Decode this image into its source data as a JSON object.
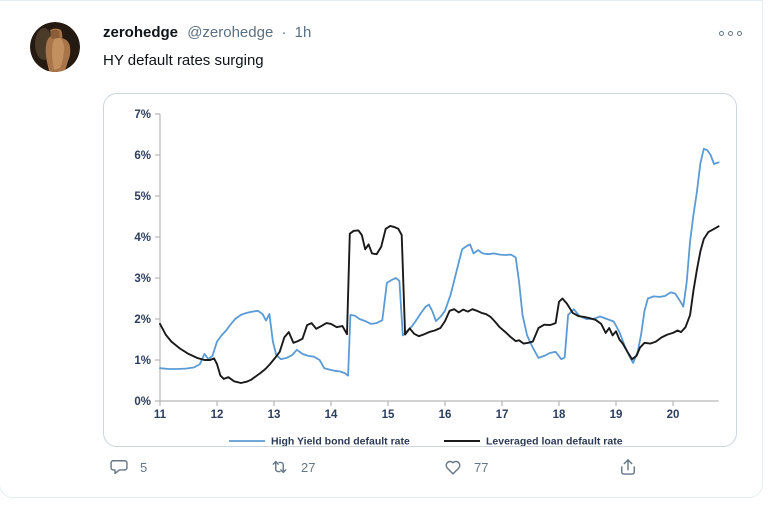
{
  "tweet": {
    "author_name": "zerohedge",
    "author_handle": "@zerohedge",
    "separator": "·",
    "timestamp": "1h",
    "text": "HY default rates surging",
    "engagement": {
      "replies": "5",
      "retweets": "27",
      "likes": "77"
    }
  },
  "icons": {
    "more": "more-ellipsis-icon",
    "reply": "reply-bubble-icon",
    "retweet": "retweet-icon",
    "like": "heart-icon",
    "share": "share-upload-icon"
  },
  "colors": {
    "text_primary": "#0f1419",
    "text_secondary": "#5b7083",
    "icon_gray": "#657786",
    "card_border": "#ccd6dd",
    "axis_line": "#b7b7b7",
    "axis_label": "#2c3e5d",
    "hy_line": "#5B9BD5",
    "loan_line": "#1a1a1a"
  },
  "chart_data": {
    "type": "line",
    "title": "",
    "xlabel": "",
    "ylabel": "",
    "xlim": [
      11,
      20.8
    ],
    "ylim": [
      0,
      7
    ],
    "grid": false,
    "legend_position": "bottom",
    "x_ticks": [
      "11",
      "12",
      "13",
      "14",
      "15",
      "16",
      "17",
      "18",
      "19",
      "20"
    ],
    "y_ticks": [
      "0%",
      "1%",
      "2%",
      "3%",
      "4%",
      "5%",
      "6%",
      "7%"
    ],
    "series": [
      {
        "name": "High Yield bond default rate",
        "color": "#5B9BD5",
        "width": 1.8,
        "points": [
          [
            11.0,
            0.8
          ],
          [
            11.15,
            0.78
          ],
          [
            11.3,
            0.78
          ],
          [
            11.45,
            0.79
          ],
          [
            11.6,
            0.82
          ],
          [
            11.7,
            0.9
          ],
          [
            11.78,
            1.15
          ],
          [
            11.85,
            1.02
          ],
          [
            11.92,
            1.1
          ],
          [
            12.0,
            1.45
          ],
          [
            12.08,
            1.6
          ],
          [
            12.16,
            1.72
          ],
          [
            12.24,
            1.87
          ],
          [
            12.32,
            2.0
          ],
          [
            12.42,
            2.1
          ],
          [
            12.52,
            2.15
          ],
          [
            12.62,
            2.18
          ],
          [
            12.72,
            2.2
          ],
          [
            12.8,
            2.12
          ],
          [
            12.86,
            1.96
          ],
          [
            12.92,
            2.12
          ],
          [
            12.98,
            1.45
          ],
          [
            13.04,
            1.12
          ],
          [
            13.12,
            1.02
          ],
          [
            13.22,
            1.05
          ],
          [
            13.32,
            1.12
          ],
          [
            13.4,
            1.25
          ],
          [
            13.5,
            1.15
          ],
          [
            13.6,
            1.1
          ],
          [
            13.7,
            1.08
          ],
          [
            13.8,
            1.0
          ],
          [
            13.88,
            0.8
          ],
          [
            13.96,
            0.77
          ],
          [
            14.06,
            0.74
          ],
          [
            14.16,
            0.72
          ],
          [
            14.24,
            0.68
          ],
          [
            14.3,
            0.62
          ],
          [
            14.34,
            2.1
          ],
          [
            14.42,
            2.08
          ],
          [
            14.5,
            2.0
          ],
          [
            14.6,
            1.95
          ],
          [
            14.7,
            1.88
          ],
          [
            14.8,
            1.9
          ],
          [
            14.9,
            1.97
          ],
          [
            14.98,
            2.88
          ],
          [
            15.06,
            2.95
          ],
          [
            15.14,
            3.0
          ],
          [
            15.2,
            2.93
          ],
          [
            15.26,
            1.6
          ],
          [
            15.34,
            1.72
          ],
          [
            15.42,
            1.82
          ],
          [
            15.5,
            1.98
          ],
          [
            15.58,
            2.15
          ],
          [
            15.66,
            2.3
          ],
          [
            15.72,
            2.35
          ],
          [
            15.78,
            2.18
          ],
          [
            15.84,
            1.95
          ],
          [
            15.92,
            2.05
          ],
          [
            16.0,
            2.2
          ],
          [
            16.1,
            2.6
          ],
          [
            16.2,
            3.15
          ],
          [
            16.3,
            3.7
          ],
          [
            16.38,
            3.78
          ],
          [
            16.44,
            3.82
          ],
          [
            16.5,
            3.6
          ],
          [
            16.58,
            3.68
          ],
          [
            16.66,
            3.6
          ],
          [
            16.76,
            3.58
          ],
          [
            16.86,
            3.6
          ],
          [
            16.96,
            3.57
          ],
          [
            17.06,
            3.56
          ],
          [
            17.16,
            3.57
          ],
          [
            17.24,
            3.5
          ],
          [
            17.3,
            2.9
          ],
          [
            17.36,
            2.1
          ],
          [
            17.44,
            1.6
          ],
          [
            17.54,
            1.3
          ],
          [
            17.64,
            1.05
          ],
          [
            17.74,
            1.1
          ],
          [
            17.84,
            1.17
          ],
          [
            17.94,
            1.2
          ],
          [
            18.04,
            1.02
          ],
          [
            18.1,
            1.06
          ],
          [
            18.16,
            2.1
          ],
          [
            18.26,
            2.24
          ],
          [
            18.36,
            2.07
          ],
          [
            18.48,
            2.0
          ],
          [
            18.6,
            2.0
          ],
          [
            18.72,
            2.06
          ],
          [
            18.84,
            2.0
          ],
          [
            18.96,
            1.94
          ],
          [
            19.06,
            1.68
          ],
          [
            19.16,
            1.32
          ],
          [
            19.24,
            1.08
          ],
          [
            19.3,
            0.93
          ],
          [
            19.38,
            1.2
          ],
          [
            19.44,
            1.62
          ],
          [
            19.5,
            2.2
          ],
          [
            19.56,
            2.5
          ],
          [
            19.66,
            2.55
          ],
          [
            19.76,
            2.54
          ],
          [
            19.86,
            2.56
          ],
          [
            19.96,
            2.65
          ],
          [
            20.04,
            2.62
          ],
          [
            20.12,
            2.45
          ],
          [
            20.18,
            2.3
          ],
          [
            20.24,
            2.9
          ],
          [
            20.3,
            3.9
          ],
          [
            20.36,
            4.55
          ],
          [
            20.42,
            5.1
          ],
          [
            20.48,
            5.8
          ],
          [
            20.54,
            6.15
          ],
          [
            20.6,
            6.12
          ],
          [
            20.66,
            6.0
          ],
          [
            20.72,
            5.78
          ],
          [
            20.8,
            5.82
          ]
        ]
      },
      {
        "name": "Leveraged loan default rate",
        "color": "#1a1a1a",
        "width": 1.9,
        "points": [
          [
            11.0,
            1.88
          ],
          [
            11.1,
            1.62
          ],
          [
            11.2,
            1.45
          ],
          [
            11.35,
            1.28
          ],
          [
            11.5,
            1.15
          ],
          [
            11.65,
            1.05
          ],
          [
            11.78,
            1.0
          ],
          [
            11.88,
            1.0
          ],
          [
            11.95,
            1.04
          ],
          [
            12.0,
            0.9
          ],
          [
            12.06,
            0.62
          ],
          [
            12.12,
            0.54
          ],
          [
            12.2,
            0.58
          ],
          [
            12.3,
            0.48
          ],
          [
            12.42,
            0.44
          ],
          [
            12.52,
            0.47
          ],
          [
            12.6,
            0.52
          ],
          [
            12.68,
            0.6
          ],
          [
            12.76,
            0.68
          ],
          [
            12.85,
            0.78
          ],
          [
            12.93,
            0.9
          ],
          [
            13.02,
            1.05
          ],
          [
            13.1,
            1.2
          ],
          [
            13.18,
            1.55
          ],
          [
            13.26,
            1.68
          ],
          [
            13.34,
            1.42
          ],
          [
            13.42,
            1.46
          ],
          [
            13.5,
            1.52
          ],
          [
            13.58,
            1.85
          ],
          [
            13.66,
            1.9
          ],
          [
            13.74,
            1.76
          ],
          [
            13.82,
            1.82
          ],
          [
            13.92,
            1.9
          ],
          [
            14.0,
            1.88
          ],
          [
            14.1,
            1.8
          ],
          [
            14.2,
            1.83
          ],
          [
            14.28,
            1.63
          ],
          [
            14.33,
            4.08
          ],
          [
            14.4,
            4.15
          ],
          [
            14.48,
            4.16
          ],
          [
            14.54,
            4.05
          ],
          [
            14.6,
            3.7
          ],
          [
            14.66,
            3.82
          ],
          [
            14.72,
            3.6
          ],
          [
            14.8,
            3.58
          ],
          [
            14.88,
            3.76
          ],
          [
            14.96,
            4.2
          ],
          [
            15.04,
            4.27
          ],
          [
            15.12,
            4.24
          ],
          [
            15.18,
            4.2
          ],
          [
            15.24,
            4.05
          ],
          [
            15.3,
            1.62
          ],
          [
            15.38,
            1.77
          ],
          [
            15.46,
            1.64
          ],
          [
            15.54,
            1.58
          ],
          [
            15.62,
            1.62
          ],
          [
            15.72,
            1.68
          ],
          [
            15.82,
            1.72
          ],
          [
            15.92,
            1.78
          ],
          [
            16.0,
            1.95
          ],
          [
            16.08,
            2.2
          ],
          [
            16.16,
            2.24
          ],
          [
            16.24,
            2.16
          ],
          [
            16.32,
            2.23
          ],
          [
            16.4,
            2.18
          ],
          [
            16.48,
            2.24
          ],
          [
            16.56,
            2.2
          ],
          [
            16.64,
            2.15
          ],
          [
            16.72,
            2.12
          ],
          [
            16.8,
            2.05
          ],
          [
            16.88,
            1.93
          ],
          [
            16.96,
            1.8
          ],
          [
            17.06,
            1.68
          ],
          [
            17.16,
            1.55
          ],
          [
            17.24,
            1.46
          ],
          [
            17.3,
            1.48
          ],
          [
            17.38,
            1.4
          ],
          [
            17.46,
            1.42
          ],
          [
            17.54,
            1.45
          ],
          [
            17.64,
            1.78
          ],
          [
            17.74,
            1.86
          ],
          [
            17.84,
            1.85
          ],
          [
            17.94,
            1.9
          ],
          [
            18.0,
            2.42
          ],
          [
            18.06,
            2.5
          ],
          [
            18.14,
            2.37
          ],
          [
            18.24,
            2.15
          ],
          [
            18.34,
            2.07
          ],
          [
            18.44,
            2.05
          ],
          [
            18.54,
            2.02
          ],
          [
            18.64,
            1.98
          ],
          [
            18.74,
            1.88
          ],
          [
            18.82,
            1.66
          ],
          [
            18.88,
            1.78
          ],
          [
            18.94,
            1.6
          ],
          [
            19.0,
            1.7
          ],
          [
            19.06,
            1.5
          ],
          [
            19.12,
            1.4
          ],
          [
            19.2,
            1.2
          ],
          [
            19.28,
            1.02
          ],
          [
            19.36,
            1.1
          ],
          [
            19.42,
            1.3
          ],
          [
            19.5,
            1.42
          ],
          [
            19.6,
            1.4
          ],
          [
            19.7,
            1.45
          ],
          [
            19.8,
            1.55
          ],
          [
            19.9,
            1.62
          ],
          [
            20.0,
            1.66
          ],
          [
            20.08,
            1.72
          ],
          [
            20.14,
            1.68
          ],
          [
            20.22,
            1.8
          ],
          [
            20.3,
            2.1
          ],
          [
            20.36,
            2.7
          ],
          [
            20.42,
            3.2
          ],
          [
            20.48,
            3.65
          ],
          [
            20.54,
            3.95
          ],
          [
            20.62,
            4.12
          ],
          [
            20.7,
            4.18
          ],
          [
            20.8,
            4.26
          ]
        ]
      }
    ]
  }
}
